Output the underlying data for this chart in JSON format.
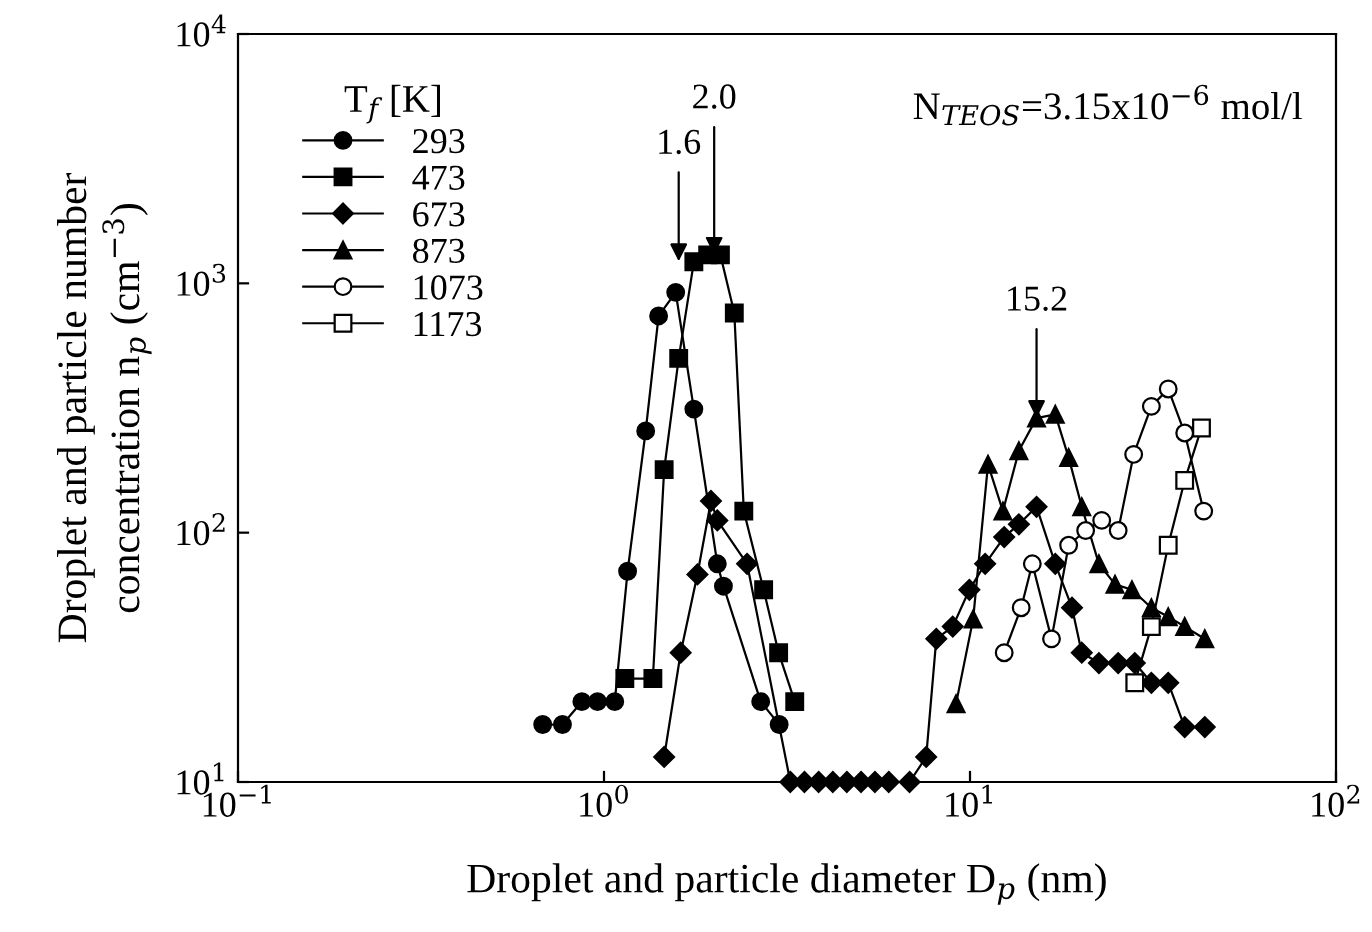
{
  "chart_data": {
    "type": "line",
    "xlabel": "Droplet and particle diameter D$_{p}$ (nm)",
    "ylabel": "Droplet and particle number\nconcentration n$_{p}$ (cm$^{−3}$)",
    "legend_title": "T$_{f}$ [K]",
    "log": "xy",
    "grid": false,
    "legend": "top left",
    "xlim": [
      0.1,
      100
    ],
    "ylim": [
      10,
      10000
    ],
    "xticks": [
      {
        "value": 0.1,
        "label": "10$^{−1}$"
      },
      {
        "value": 1,
        "label": "10$^{0}$"
      },
      {
        "value": 10,
        "label": "10$^{1}$"
      },
      {
        "value": 100,
        "label": "10$^{2}$"
      }
    ],
    "yticks": [
      {
        "value": 10,
        "label": "10$^{1}$"
      },
      {
        "value": 100,
        "label": "10$^{2}$"
      },
      {
        "value": 1000,
        "label": "10$^{3}$"
      },
      {
        "value": 10000,
        "label": "10$^{4}$"
      }
    ],
    "annotations": [
      {
        "text": "1.6",
        "x": 1.6,
        "y": 1225
      },
      {
        "text": "2.0",
        "x": 2.0,
        "y": 1300
      },
      {
        "text": "15.2",
        "x": 15.2,
        "y": 288
      },
      "N$_{TEOS}$=3.15x10$^{−6}$ mol/l"
    ],
    "series": [
      {
        "name": "293",
        "color": "#000000",
        "marker": "circle",
        "x": [
          0.68,
          0.77,
          0.87,
          0.96,
          1.07,
          1.16,
          1.3,
          1.41,
          1.57,
          1.76,
          2.04,
          2.12,
          2.68,
          3.01
        ],
        "values": [
          17,
          17,
          21,
          21,
          21,
          70,
          256,
          740,
          920,
          313,
          75,
          61,
          21,
          17
        ]
      },
      {
        "name": "473",
        "color": "#000000",
        "marker": "square",
        "x": [
          1.14,
          1.36,
          1.46,
          1.6,
          1.76,
          1.92,
          2.08,
          2.27,
          2.41,
          2.73,
          3.0,
          3.32
        ],
        "values": [
          26,
          26,
          179,
          500,
          1220,
          1300,
          1300,
          760,
          122,
          59,
          33,
          21
        ]
      },
      {
        "name": "673",
        "color": "#000000",
        "marker": "diamond",
        "x": [
          1.46,
          1.62,
          1.8,
          1.96,
          2.04,
          2.46,
          3.23,
          3.53,
          3.86,
          4.22,
          4.61,
          5.04,
          5.5,
          6.0,
          6.84,
          7.59,
          8.09,
          8.97,
          9.96,
          11.0,
          12.4,
          13.6,
          15.2,
          17.1,
          19.0,
          20.2,
          22.5,
          25.4,
          28.2,
          31.3,
          34.8,
          38.6,
          43.8
        ],
        "values": [
          12.6,
          33,
          68,
          134,
          112,
          75,
          10,
          10,
          10,
          10,
          10,
          10,
          10,
          10,
          10,
          12.6,
          37.5,
          42,
          59,
          75,
          96,
          108,
          127,
          75,
          50,
          33,
          30,
          30,
          30,
          25,
          25,
          16.6,
          16.6
        ]
      },
      {
        "name": "873",
        "color": "#000000",
        "marker": "triangle",
        "x": [
          9.16,
          10.2,
          11.2,
          12.3,
          13.6,
          15.2,
          17.1,
          18.6,
          20.2,
          22.5,
          24.9,
          27.7,
          31.3,
          34.8,
          38.6,
          43.8
        ],
        "values": [
          20.6,
          45,
          188,
          122,
          213,
          288,
          298,
          200,
          127,
          75,
          62,
          59,
          50,
          46,
          42,
          37.5
        ]
      },
      {
        "name": "1073",
        "color": "#000000",
        "marker": "circle",
        "x": [
          12.4,
          13.8,
          14.8,
          16.7,
          18.6,
          20.7,
          22.9,
          25.4,
          28.0,
          31.3,
          34.8,
          38.6,
          43.5
        ],
        "values": [
          33,
          50,
          75,
          37.5,
          89,
          102,
          112,
          102,
          206,
          321,
          377,
          251,
          122
        ]
      },
      {
        "name": "1173",
        "color": "#000000",
        "marker": "square",
        "x": [
          28.2,
          31.3,
          34.8,
          38.6,
          42.9
        ],
        "values": [
          25,
          42,
          89,
          162,
          263
        ]
      }
    ]
  }
}
